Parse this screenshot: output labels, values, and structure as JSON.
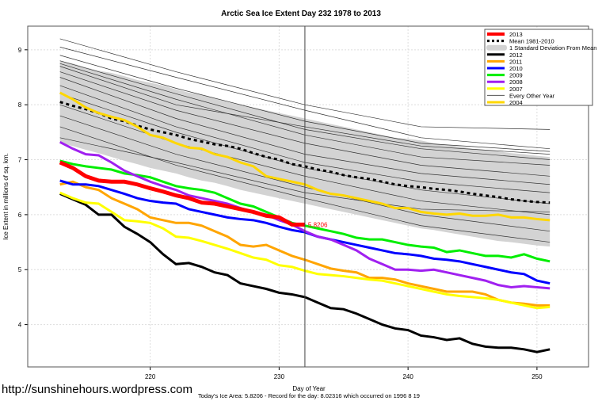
{
  "chart_data": {
    "type": "line",
    "title": "Arctic Sea Ice Extent Day 232 1978 to 2013",
    "xlabel": "Day of Year",
    "ylabel": "Ice Extent in millions of sq. km.",
    "xlim": [
      210.5,
      254
    ],
    "ylim": [
      3.23,
      9.43
    ],
    "xticks": [
      220,
      230,
      240,
      250
    ],
    "yticks": [
      4,
      5,
      6,
      7,
      8,
      9
    ],
    "grid": true,
    "legend_position": "top-right",
    "vline_day": 232,
    "current_label": "5.8206",
    "days_start": 213,
    "band": {
      "name": "1 Standard Deviation From Mean",
      "color": "#d3d3d3",
      "upper": [
        8.8,
        8.75,
        8.68,
        8.62,
        8.58,
        8.52,
        8.45,
        8.4,
        8.35,
        8.28,
        8.22,
        8.18,
        8.12,
        8.05,
        8.0,
        7.95,
        7.9,
        7.85,
        7.8,
        7.75,
        7.7,
        7.65,
        7.6,
        7.55,
        7.5,
        7.45,
        7.4,
        7.38,
        7.35,
        7.3,
        7.27,
        7.24,
        7.2,
        7.18,
        7.15,
        7.12,
        7.1,
        7.07,
        7.05
      ],
      "lower": [
        7.3,
        7.25,
        7.18,
        7.12,
        7.05,
        6.98,
        6.92,
        6.85,
        6.8,
        6.75,
        6.68,
        6.62,
        6.58,
        6.52,
        6.45,
        6.4,
        6.35,
        6.3,
        6.25,
        6.2,
        6.15,
        6.1,
        6.05,
        6.0,
        5.95,
        5.9,
        5.85,
        5.8,
        5.75,
        5.72,
        5.68,
        5.64,
        5.6,
        5.56,
        5.52,
        5.5,
        5.47,
        5.44,
        5.42
      ]
    },
    "mean": {
      "name": "Mean 1981-2010",
      "color": "#000000",
      "values": [
        8.05,
        7.98,
        7.92,
        7.85,
        7.75,
        7.7,
        7.62,
        7.55,
        7.5,
        7.45,
        7.38,
        7.33,
        7.28,
        7.25,
        7.2,
        7.12,
        7.05,
        7.0,
        6.92,
        6.88,
        6.82,
        6.78,
        6.72,
        6.68,
        6.65,
        6.6,
        6.55,
        6.52,
        6.5,
        6.47,
        6.45,
        6.42,
        6.38,
        6.35,
        6.32,
        6.28,
        6.25,
        6.23,
        6.22
      ]
    },
    "series": [
      {
        "name": "2012",
        "color": "#000000",
        "values": [
          6.38,
          6.28,
          6.18,
          6.0,
          6.0,
          5.78,
          5.65,
          5.5,
          5.28,
          5.1,
          5.12,
          5.05,
          4.95,
          4.9,
          4.75,
          4.7,
          4.65,
          4.58,
          4.55,
          4.5,
          4.4,
          4.3,
          4.28,
          4.2,
          4.1,
          4.0,
          3.93,
          3.9,
          3.8,
          3.77,
          3.72,
          3.75,
          3.65,
          3.6,
          3.58,
          3.58,
          3.55,
          3.5,
          3.55
        ]
      },
      {
        "name": "2011",
        "color": "#ffa500",
        "values": [
          6.55,
          6.6,
          6.5,
          6.45,
          6.3,
          6.2,
          6.1,
          5.95,
          5.9,
          5.85,
          5.85,
          5.8,
          5.7,
          5.6,
          5.45,
          5.42,
          5.45,
          5.35,
          5.25,
          5.18,
          5.1,
          5.02,
          4.98,
          4.95,
          4.85,
          4.85,
          4.82,
          4.75,
          4.7,
          4.65,
          4.6,
          4.6,
          4.6,
          4.55,
          4.45,
          4.4,
          4.38,
          4.35,
          4.35
        ]
      },
      {
        "name": "2010",
        "color": "#0000ff",
        "values": [
          6.62,
          6.55,
          6.55,
          6.52,
          6.45,
          6.38,
          6.3,
          6.25,
          6.22,
          6.2,
          6.1,
          6.05,
          6.0,
          5.95,
          5.92,
          5.9,
          5.85,
          5.78,
          5.72,
          5.68,
          5.6,
          5.55,
          5.5,
          5.45,
          5.4,
          5.35,
          5.3,
          5.28,
          5.25,
          5.2,
          5.18,
          5.15,
          5.1,
          5.05,
          5.0,
          4.95,
          4.92,
          4.8,
          4.75
        ]
      },
      {
        "name": "2009",
        "color": "#00ee00",
        "values": [
          6.98,
          6.92,
          6.88,
          6.85,
          6.82,
          6.75,
          6.72,
          6.68,
          6.6,
          6.52,
          6.48,
          6.45,
          6.4,
          6.3,
          6.2,
          6.15,
          6.05,
          5.95,
          5.85,
          5.8,
          5.75,
          5.7,
          5.65,
          5.58,
          5.55,
          5.55,
          5.5,
          5.45,
          5.42,
          5.4,
          5.32,
          5.35,
          5.3,
          5.25,
          5.25,
          5.22,
          5.28,
          5.2,
          5.15
        ]
      },
      {
        "name": "2008",
        "color": "#a020f0",
        "values": [
          7.32,
          7.2,
          7.1,
          7.08,
          6.95,
          6.8,
          6.7,
          6.6,
          6.52,
          6.45,
          6.35,
          6.3,
          6.25,
          6.2,
          6.12,
          6.05,
          6.0,
          5.9,
          5.82,
          5.7,
          5.6,
          5.55,
          5.45,
          5.35,
          5.2,
          5.1,
          5.0,
          5.0,
          4.98,
          5.0,
          4.95,
          4.9,
          4.85,
          4.8,
          4.72,
          4.68,
          4.7,
          4.68,
          4.66
        ]
      },
      {
        "name": "2007",
        "color": "#ffff00",
        "values": [
          6.4,
          6.3,
          6.22,
          6.2,
          6.05,
          5.9,
          5.88,
          5.85,
          5.75,
          5.6,
          5.58,
          5.52,
          5.45,
          5.38,
          5.3,
          5.22,
          5.18,
          5.08,
          5.05,
          4.98,
          4.92,
          4.9,
          4.88,
          4.85,
          4.82,
          4.8,
          4.75,
          4.7,
          4.65,
          4.6,
          4.55,
          4.52,
          4.5,
          4.48,
          4.45,
          4.4,
          4.35,
          4.3,
          4.32
        ]
      },
      {
        "name": "2004",
        "color": "#ffd700",
        "values": [
          8.22,
          8.1,
          7.95,
          7.85,
          7.78,
          7.72,
          7.6,
          7.45,
          7.4,
          7.3,
          7.22,
          7.2,
          7.1,
          7.05,
          6.95,
          6.88,
          6.7,
          6.65,
          6.6,
          6.55,
          6.45,
          6.38,
          6.35,
          6.3,
          6.25,
          6.2,
          6.12,
          6.12,
          6.05,
          6.02,
          6.0,
          6.02,
          5.98,
          5.98,
          6.0,
          5.95,
          5.95,
          5.92,
          5.9
        ]
      },
      {
        "name": "2013",
        "color": "#ff0000",
        "values": [
          6.95,
          6.85,
          6.7,
          6.62,
          6.6,
          6.6,
          6.55,
          6.48,
          6.42,
          6.35,
          6.3,
          6.22,
          6.2,
          6.15,
          6.1,
          6.05,
          5.98,
          5.95,
          5.82,
          5.82
        ]
      }
    ],
    "other_years": {
      "name": "Every Other Year",
      "color": "#000000",
      "days": [
        213,
        222,
        232,
        241,
        251
      ],
      "lines": [
        [
          9.2,
          8.6,
          8.0,
          7.6,
          7.55
        ],
        [
          9.05,
          8.5,
          7.9,
          7.4,
          7.2
        ],
        [
          8.9,
          8.3,
          7.7,
          7.3,
          7.15
        ],
        [
          8.8,
          8.2,
          7.55,
          7.2,
          7.0
        ],
        [
          8.75,
          8.1,
          7.45,
          7.05,
          6.9
        ],
        [
          8.6,
          7.9,
          7.3,
          6.9,
          6.7
        ],
        [
          8.5,
          7.75,
          7.1,
          6.75,
          6.55
        ],
        [
          8.35,
          7.6,
          6.95,
          6.6,
          6.4
        ],
        [
          8.2,
          7.5,
          6.85,
          6.45,
          6.2
        ],
        [
          8.0,
          7.3,
          6.7,
          6.25,
          6.0
        ],
        [
          7.8,
          7.1,
          6.5,
          6.0,
          5.7
        ],
        [
          7.6,
          6.9,
          6.3,
          5.8,
          5.5
        ],
        [
          7.4,
          6.95,
          6.4,
          6.1,
          6.05
        ],
        [
          8.7,
          8.0,
          7.6,
          7.25,
          7.1
        ]
      ]
    },
    "legend": [
      "2013",
      "Mean 1981-2010",
      "1 Standard Deviation From Mean",
      "2012",
      "2011",
      "2010",
      "2009",
      "2008",
      "2007",
      "Every Other Year",
      "2004"
    ]
  },
  "footer": {
    "url": "http://sunshinehours.wordpress.com",
    "note": "Today's Ice Area: 5.8206  - Record for the day: 8.02316 which occurred on 1996 8 19"
  }
}
